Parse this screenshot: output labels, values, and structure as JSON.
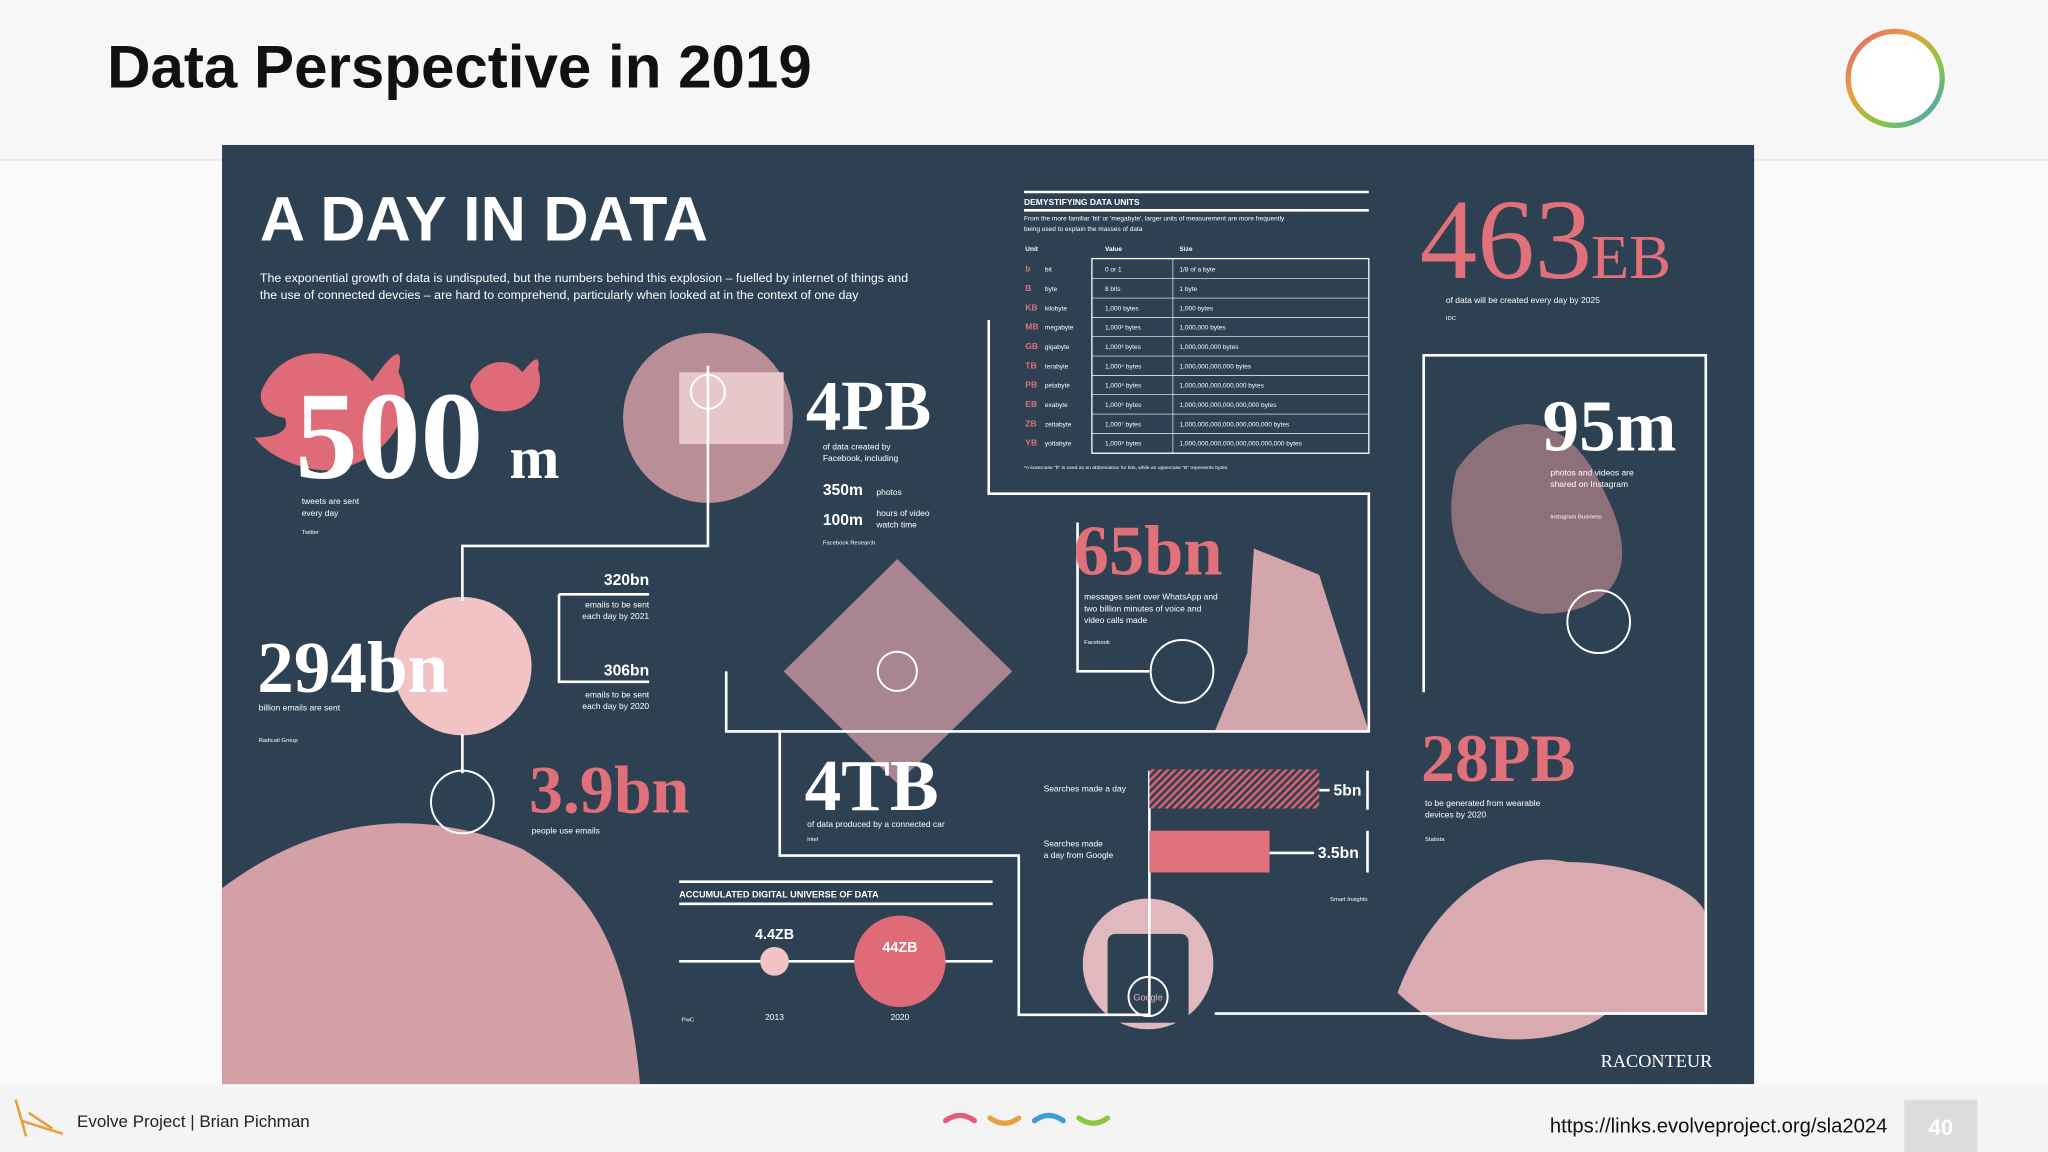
{
  "header": {
    "title": "Data Perspective in 2019"
  },
  "infographic": {
    "title": "A DAY IN DATA",
    "intro": [
      "The exponential growth of data is undisputed, but the numbers behind this explosion – fuelled by internet of things and",
      "the use of connected devcies – are hard to comprehend, particularly when looked at in the context of one day"
    ],
    "twitter": {
      "value": "500",
      "unit": "m",
      "label": [
        "tweets are sent",
        "every day"
      ],
      "source": "Twitter"
    },
    "facebook": {
      "value": "4PB",
      "label": [
        "of data created by",
        "Facebook, including"
      ],
      "items": [
        {
          "value": "350m",
          "label": [
            "photos"
          ]
        },
        {
          "value": "100m",
          "label": [
            "hours of video",
            "watch time"
          ]
        }
      ],
      "source": "Facebook Research"
    },
    "emails": {
      "value": "294bn",
      "label": "billion emails are sent",
      "source": "Radicati Group",
      "forecasts": [
        {
          "value": "320bn",
          "label": [
            "emails to be sent",
            "each day by 2021"
          ]
        },
        {
          "value": "306bn",
          "label": [
            "emails to be sent",
            "each day by 2020"
          ]
        }
      ]
    },
    "email_users": {
      "value": "3.9bn",
      "label": "people use emails"
    },
    "whatsapp": {
      "value": "65bn",
      "label": [
        "messages sent over WhatsApp and",
        "two billion minutes of voice and",
        "video calls made"
      ],
      "source": "Facebook"
    },
    "data_2025": {
      "value": "463",
      "unit": "EB",
      "label": "of data will be created every day by 2025",
      "source": "IDC"
    },
    "instagram": {
      "value": "95m",
      "label": [
        "photos and videos are",
        "shared on Instagram"
      ],
      "source": "Instagram Business"
    },
    "car": {
      "value": "4TB",
      "label": "of data produced by a connected car",
      "source": "Intel"
    },
    "searches": {
      "items": [
        {
          "label": [
            "Searches made a day"
          ],
          "value": "5bn"
        },
        {
          "label": [
            "Searches made",
            "a day from Google"
          ],
          "value": "3.5bn"
        }
      ],
      "source": "Smart Insights"
    },
    "wearables": {
      "value": "28PB",
      "label": [
        "to be generated from wearable",
        "devices by 2020"
      ],
      "source": "Statista"
    },
    "universe": {
      "title": "ACCUMULATED DIGITAL UNIVERSE OF DATA",
      "points": [
        {
          "value": "4.4ZB",
          "year": "2013"
        },
        {
          "value": "44ZB",
          "year": "2020"
        }
      ],
      "source": "PwC"
    },
    "units": {
      "title": "DEMYSTIFYING DATA UNITS",
      "description": [
        "From the more familiar 'bit' or 'megabyte', larger units of measurement are more frequently",
        "being used to explain the masses of data"
      ],
      "columns": [
        "Unit",
        "Value",
        "Size"
      ],
      "rows": [
        [
          "b",
          "bit",
          "0 or 1",
          "1/8 of a byte"
        ],
        [
          "B",
          "byte",
          "8 bits",
          "1 byte"
        ],
        [
          "KB",
          "kilobyte",
          "1,000 bytes",
          "1,000 bytes"
        ],
        [
          "MB",
          "megabyte",
          "1,000² bytes",
          "1,000,000 bytes"
        ],
        [
          "GB",
          "gigabyte",
          "1,000³ bytes",
          "1,000,000,000 bytes"
        ],
        [
          "TB",
          "terabyte",
          "1,000⁴ bytes",
          "1,000,000,000,000 bytes"
        ],
        [
          "PB",
          "petabyte",
          "1,000⁵ bytes",
          "1,000,000,000,000,000 bytes"
        ],
        [
          "EB",
          "exabyte",
          "1,000⁶ bytes",
          "1,000,000,000,000,000,000 bytes"
        ],
        [
          "ZB",
          "zettabyte",
          "1,000⁷ bytes",
          "1,000,000,000,000,000,000,000 bytes"
        ],
        [
          "YB",
          "yottabyte",
          "1,000⁸ bytes",
          "1,000,000,000,000,000,000,000,000 bytes"
        ]
      ],
      "footnote": "*A lowercase \"b\" is used as an abbreviation for bits, while an uppercase \"B\" represents bytes."
    },
    "google": "Google",
    "brand": "RACONTEUR"
  },
  "footer": {
    "credit": "Evolve Project | Brian Pichman",
    "url": "https://links.evolveproject.org/sla2024",
    "page": "40"
  }
}
